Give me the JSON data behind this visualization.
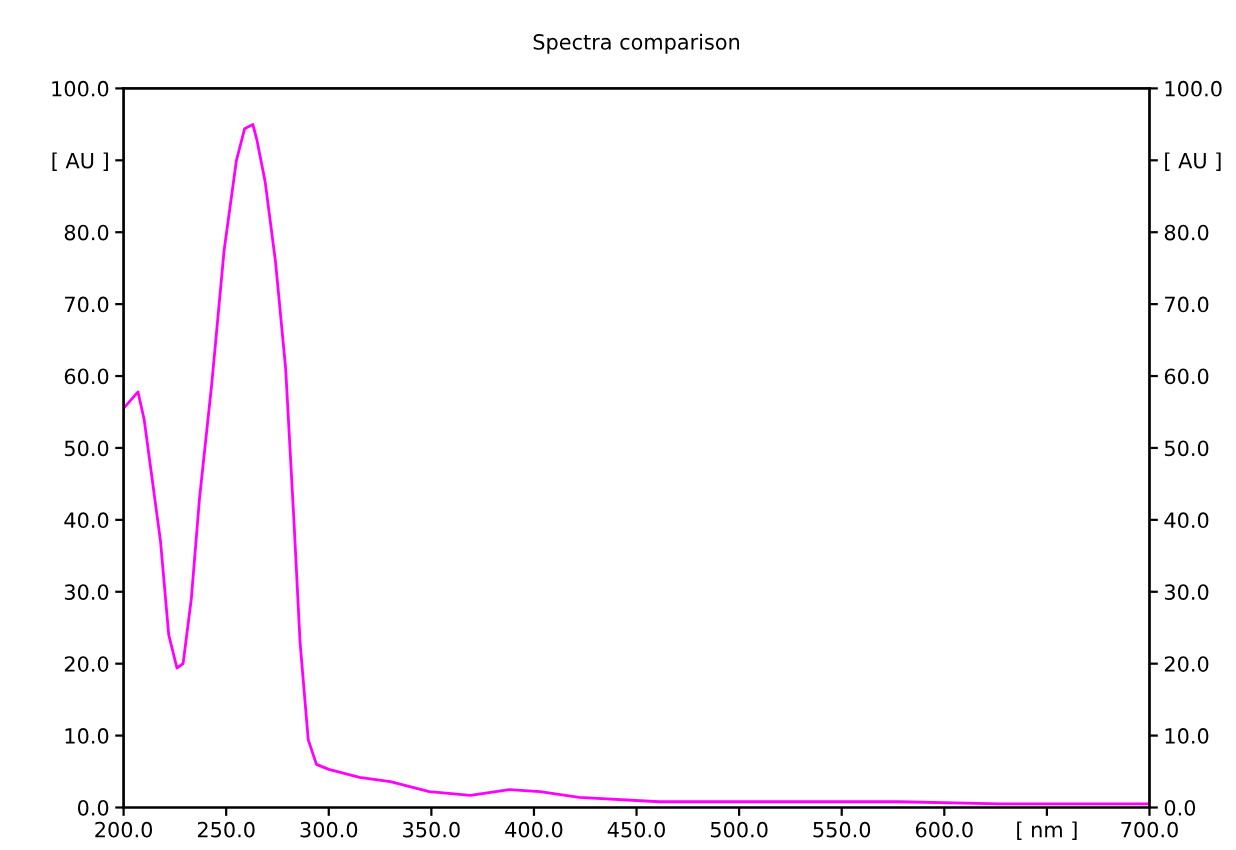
{
  "chart_data": {
    "type": "line",
    "title": "Spectra comparison",
    "x": [
      200,
      207,
      210,
      214,
      218,
      222,
      226,
      229,
      233,
      237,
      243,
      249,
      255,
      259,
      263,
      265,
      269,
      274,
      279,
      283,
      286,
      290,
      294,
      300,
      315,
      330,
      349,
      369,
      388,
      403,
      422,
      461,
      529,
      578,
      627,
      700
    ],
    "series": [
      {
        "color": "#ff00ff",
        "values": [
          55.5,
          57.8,
          54,
          45.5,
          37,
          24,
          19.4,
          20,
          29,
          43,
          59,
          77.5,
          90,
          94.4,
          95,
          92.8,
          87,
          76,
          61,
          40,
          23,
          9.4,
          6,
          5.3,
          4.2,
          3.6,
          2.2,
          1.7,
          2.5,
          2.2,
          1.4,
          0.8,
          0.8,
          0.8,
          0.5,
          0.5
        ]
      }
    ],
    "xlim": [
      200,
      700
    ],
    "xticks": [
      {
        "value": 200,
        "label": "200.0"
      },
      {
        "value": 250,
        "label": "250.0"
      },
      {
        "value": 300,
        "label": "300.0"
      },
      {
        "value": 350,
        "label": "350.0"
      },
      {
        "value": 400,
        "label": "400.0"
      },
      {
        "value": 450,
        "label": "450.0"
      },
      {
        "value": 500,
        "label": "500.0"
      },
      {
        "value": 550,
        "label": "550.0"
      },
      {
        "value": 600,
        "label": "600.0"
      },
      {
        "value": 650,
        "label": "[ nm ]"
      },
      {
        "value": 700,
        "label": "700.0"
      }
    ],
    "ylim": [
      0,
      100
    ],
    "yticks": [
      {
        "value": 0,
        "label": "0.0"
      },
      {
        "value": 10,
        "label": "10.0"
      },
      {
        "value": 20,
        "label": "20.0"
      },
      {
        "value": 30,
        "label": "30.0"
      },
      {
        "value": 40,
        "label": "40.0"
      },
      {
        "value": 50,
        "label": "50.0"
      },
      {
        "value": 60,
        "label": "60.0"
      },
      {
        "value": 70,
        "label": "70.0"
      },
      {
        "value": 80,
        "label": "80.0"
      },
      {
        "value": 90,
        "label": "[ AU ]"
      },
      {
        "value": 100,
        "label": "100.0"
      }
    ],
    "y2lim": [
      0,
      100
    ],
    "y2ticks": [
      {
        "value": 0,
        "label": "0.0"
      },
      {
        "value": 10,
        "label": "10.0"
      },
      {
        "value": 20,
        "label": "20.0"
      },
      {
        "value": 30,
        "label": "30.0"
      },
      {
        "value": 40,
        "label": "40.0"
      },
      {
        "value": 50,
        "label": "50.0"
      },
      {
        "value": 60,
        "label": "60.0"
      },
      {
        "value": 70,
        "label": "70.0"
      },
      {
        "value": 80,
        "label": "80.0"
      },
      {
        "value": 90,
        "label": "[ AU ]"
      },
      {
        "value": 100,
        "label": "100.0"
      }
    ],
    "grid": false,
    "legend": false,
    "marker": "none",
    "line_style": "solid"
  }
}
